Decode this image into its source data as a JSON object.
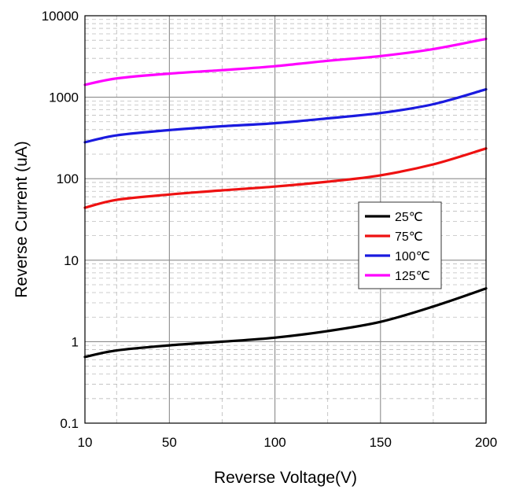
{
  "chart_data": {
    "type": "line",
    "xlabel": "Reverse Voltage(V)",
    "ylabel": "Reverse Current (uA)",
    "x_scale": "linear",
    "y_scale": "log",
    "xlim": [
      10,
      200
    ],
    "ylim": [
      0.1,
      10000
    ],
    "x_ticks": [
      10,
      50,
      100,
      150,
      200
    ],
    "x_tick_labels": [
      "10",
      "50",
      "100",
      "150",
      "200"
    ],
    "y_ticks": [
      0.1,
      1,
      10,
      100,
      1000,
      10000
    ],
    "y_tick_labels": [
      "0.1",
      "1",
      "10",
      "100",
      "1000",
      "10000"
    ],
    "grid": true,
    "legend_position": "right-center",
    "series": [
      {
        "name": "25℃",
        "color": "#000000",
        "x": [
          10,
          25,
          50,
          75,
          100,
          125,
          150,
          175,
          200
        ],
        "y": [
          0.65,
          0.78,
          0.9,
          1.0,
          1.12,
          1.35,
          1.75,
          2.7,
          4.5
        ]
      },
      {
        "name": "75℃",
        "color": "#ee1111",
        "x": [
          10,
          25,
          50,
          75,
          100,
          125,
          150,
          175,
          200
        ],
        "y": [
          44,
          55,
          64,
          72,
          80,
          92,
          110,
          150,
          235
        ]
      },
      {
        "name": "100℃",
        "color": "#1a1adf",
        "x": [
          10,
          25,
          50,
          75,
          100,
          125,
          150,
          175,
          200
        ],
        "y": [
          280,
          340,
          395,
          440,
          480,
          550,
          640,
          820,
          1250
        ]
      },
      {
        "name": "125℃",
        "color": "#ff00ff",
        "x": [
          10,
          25,
          50,
          75,
          100,
          125,
          150,
          175,
          200
        ],
        "y": [
          1420,
          1700,
          1950,
          2150,
          2400,
          2800,
          3200,
          3900,
          5200
        ]
      }
    ]
  }
}
